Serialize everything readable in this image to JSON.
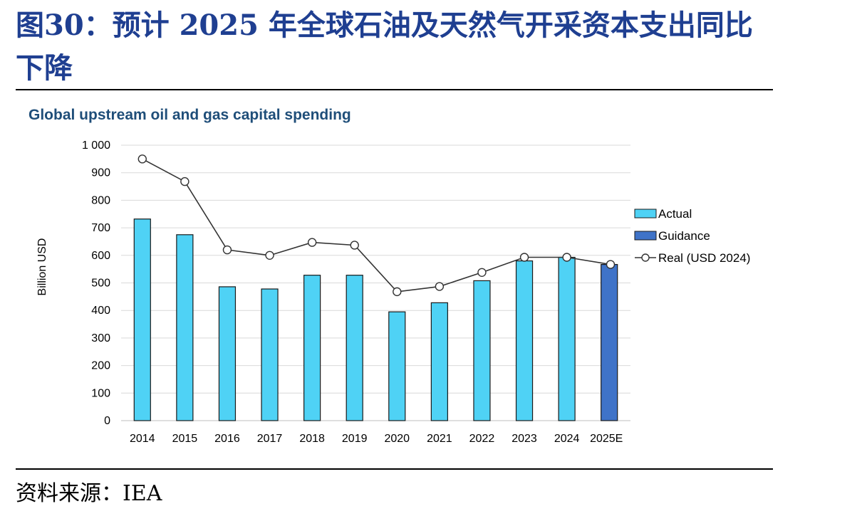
{
  "figure": {
    "title": "图30：预计 2025 年全球石油及天然气开采资本支出同比下降",
    "source": "资料来源：IEA"
  },
  "chart_data": {
    "type": "bar",
    "title": "Global upstream oil and gas capital spending",
    "ylabel": "Billion USD",
    "xlabel": "",
    "ylim": [
      0,
      1000
    ],
    "yticks": [
      0,
      100,
      200,
      300,
      400,
      500,
      600,
      700,
      800,
      900,
      1000
    ],
    "ytick_labels": [
      "0",
      "100",
      "200",
      "300",
      "400",
      "500",
      "600",
      "700",
      "800",
      "900",
      "1 000"
    ],
    "grid": true,
    "legend_position": "right",
    "categories": [
      "2014",
      "2015",
      "2016",
      "2017",
      "2018",
      "2019",
      "2020",
      "2021",
      "2022",
      "2023",
      "2024",
      "2025E"
    ],
    "series": [
      {
        "name": "Actual",
        "kind": "bar",
        "color": "#4fd2f5",
        "values": [
          732,
          675,
          486,
          478,
          528,
          528,
          395,
          428,
          508,
          580,
          593,
          null
        ]
      },
      {
        "name": "Guidance",
        "kind": "bar",
        "color": "#3f73c8",
        "values": [
          null,
          null,
          null,
          null,
          null,
          null,
          null,
          null,
          null,
          null,
          null,
          567
        ]
      },
      {
        "name": "Real (USD 2024)",
        "kind": "line",
        "color": "#333333",
        "values": [
          950,
          868,
          620,
          600,
          647,
          637,
          468,
          487,
          538,
          593,
          593,
          567
        ]
      }
    ]
  }
}
